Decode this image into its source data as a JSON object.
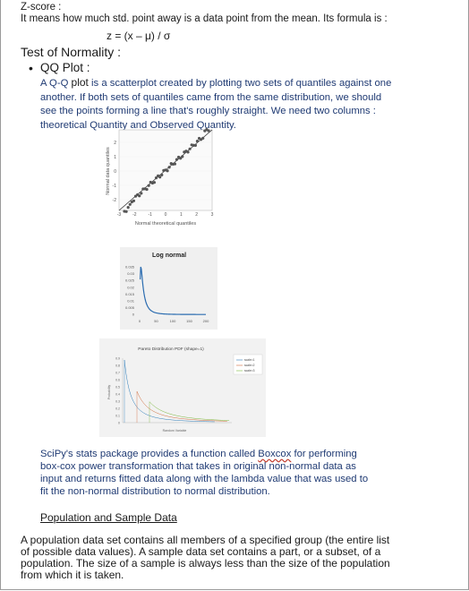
{
  "zscore": {
    "heading": "Z-score :",
    "description": "It means how much std. point away is a data point from the mean. Its formula is :",
    "formula": "z = (x – μ) / σ"
  },
  "normality": {
    "heading": "Test of Normality :"
  },
  "qq": {
    "title": "QQ Plot :",
    "para_a": "A Q-Q ",
    "para_b": "plot",
    "para_c": " is a scatterplot created by plotting two sets of quantiles against one another. If both sets of quantiles came from the same distribution, we should see the points forming a line that's roughly straight. We need two  columns : theoretical Quantity and Observed Quantity."
  },
  "figures": {
    "qq": {
      "ylabel": "Normal data quantiles",
      "xlabel": "Normal theoretical quantiles",
      "xticks": [
        "-3",
        "-2",
        "-1",
        "0",
        "1",
        "2",
        "3"
      ],
      "yticks": [
        "2",
        "1",
        "0",
        "-1",
        "-2"
      ]
    },
    "lognormal": {
      "title": "Log normal",
      "yticks": [
        "0.035",
        "0.03",
        "0.025",
        "0.02",
        "0.015",
        "0.01",
        "0.005",
        "0"
      ],
      "xticks": [
        "0",
        "50",
        "100",
        "150",
        "200"
      ]
    },
    "pareto": {
      "title": "Pareto Distribution PDF (shape=1)",
      "ylabel": "Probability",
      "xlabel": "Random Variable",
      "yticks": [
        "0.9",
        "0.8",
        "0.7",
        "0.6",
        "0.5",
        "0.4",
        "0.3",
        "0.2",
        "0.1",
        "0"
      ],
      "legend": [
        "scale=1",
        "scale=2",
        "scale=3"
      ],
      "colors": [
        "#2a7ab8",
        "#d16b3a",
        "#7ab83a"
      ]
    }
  },
  "scipy": {
    "para_a": "SciPy's stats package provides a function called ",
    "term": "Boxcox",
    "para_b": " for performing box-cox power transformation that takes in original non-normal data as input and returns fitted data along with the lambda value that was used to fit the non-normal distribution to normal distribution."
  },
  "population": {
    "heading": "Population and Sample Data",
    "paragraph": "    A population data set contains all members of a specified group     (the entire list of possible data values). A sample data set contains a part, or a subset, of a population. The size of a sample is always less than the size of the population from which it is taken."
  }
}
